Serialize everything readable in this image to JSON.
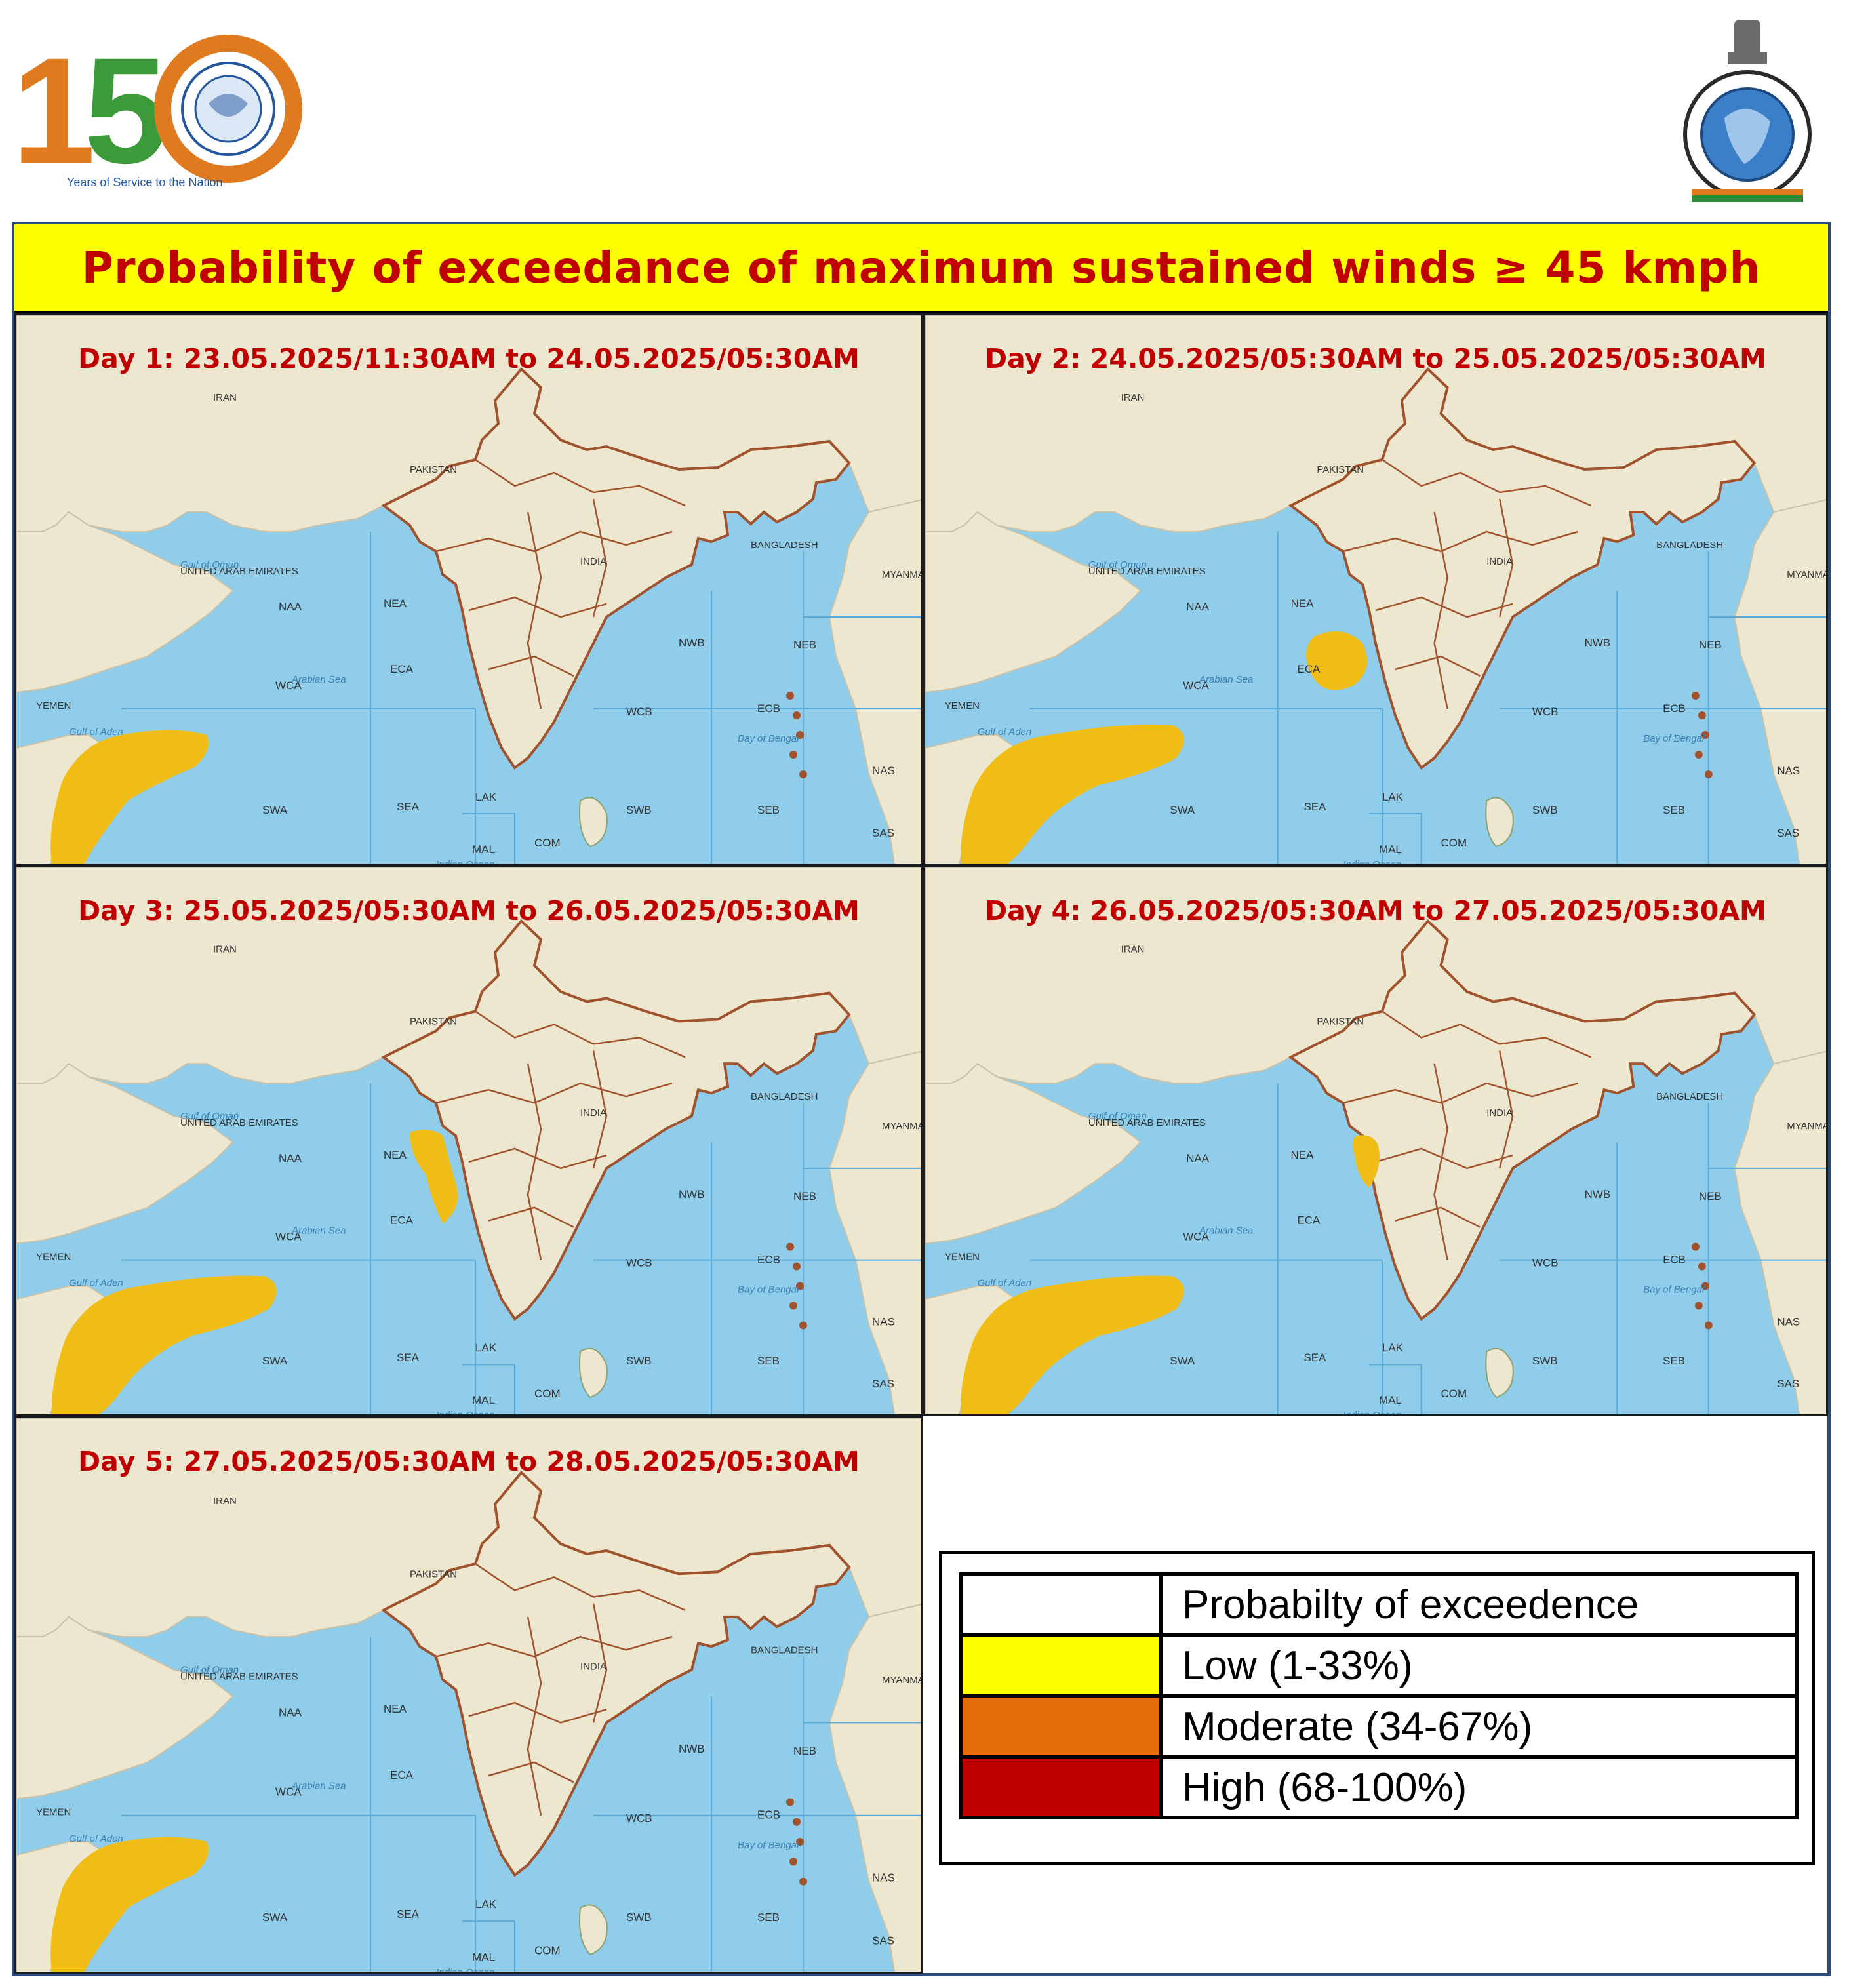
{
  "header": {
    "left_logo": {
      "icon": "imd-150-years-logo",
      "numeral": "150",
      "tagline": "Years of Service to the Nation"
    },
    "right_logo": {
      "icon": "imd-emblem-logo"
    }
  },
  "title": "Probability  of exceedance of maximum sustained  winds ≥ 45 kmph",
  "map_labels": {
    "countries": [
      "IRAN",
      "PAKISTAN",
      "INDIA",
      "YEMEN",
      "BANGLADESH",
      "MYANMAR (BURMA)",
      "UNITED ARAB EMIRATES"
    ],
    "regions": [
      "NAA",
      "NEA",
      "ECA",
      "WCA",
      "SWA",
      "SEA",
      "LAK",
      "MAL",
      "COM",
      "NWB",
      "NEB",
      "WCB",
      "ECB",
      "SWB",
      "SEB",
      "NAS",
      "SAS"
    ],
    "seas": [
      "Arabian Sea",
      "Bay of Bengal",
      "Gulf of Aden",
      "Gulf of Oman",
      "Indian Ocean"
    ]
  },
  "panels": [
    {
      "id": "day1",
      "label": "Day 1:  23.05.2025/11:30AM  to 24.05.2025/05:30AM",
      "zones": [
        {
          "level": "low",
          "area": "Gulf of Aden / SWA"
        }
      ]
    },
    {
      "id": "day2",
      "label": "Day 2:  24.05.2025/05:30AM  to 25.05.2025/05:30AM",
      "zones": [
        {
          "level": "low",
          "area": "Gulf of Aden / SWA"
        },
        {
          "level": "low",
          "area": "ECA off Maharashtra coast"
        }
      ]
    },
    {
      "id": "day3",
      "label": "Day 3:   25.05.2025/05:30AM  to 26.05.2025/05:30AM",
      "zones": [
        {
          "level": "low",
          "area": "Gulf of Aden / SWA"
        },
        {
          "level": "low",
          "area": "Gujarat / Konkan coast"
        }
      ]
    },
    {
      "id": "day4",
      "label": "Day 4:  26.05.2025/05:30AM  to 27.05.2025/05:30AM",
      "zones": [
        {
          "level": "low",
          "area": "Gulf of Aden / SWA"
        },
        {
          "level": "low",
          "area": "Gujarat coast"
        }
      ]
    },
    {
      "id": "day5",
      "label": "Day 5:  27.05.2025/05:30AM  to 28.05.2025/05:30AM",
      "zones": [
        {
          "level": "low",
          "area": "Gulf of Aden / SWA"
        }
      ]
    }
  ],
  "legend": {
    "header": "Probabilty of exceedence",
    "items": [
      {
        "label": "Low (1-33%)",
        "color": "#ffff00"
      },
      {
        "label": "Moderate (34-67%)",
        "color": "#e46c0a"
      },
      {
        "label": "High (68-100%)",
        "color": "#c00000"
      }
    ]
  },
  "colors": {
    "zone_fill": "#f0bd17",
    "sea": "#8fcdea",
    "land": "#eee7d0",
    "border": "#a0522d",
    "title_bg": "#ffff00",
    "title_text": "#c00000"
  }
}
